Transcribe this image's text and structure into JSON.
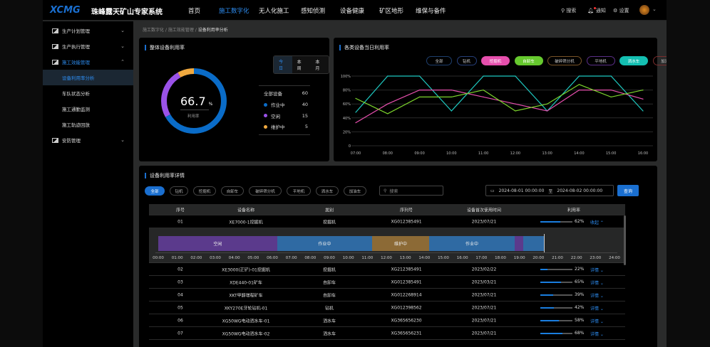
{
  "header": {
    "logo": "XCMG",
    "system_name": "珠峰露天矿山专家系统",
    "nav": [
      {
        "label": "首页",
        "active": false
      },
      {
        "label": "施工数字化",
        "active": true
      },
      {
        "label": "无人化施工",
        "active": false
      },
      {
        "label": "感知侦测",
        "active": false
      },
      {
        "label": "设备健康",
        "active": false
      },
      {
        "label": "矿区地形",
        "active": false
      },
      {
        "label": "维保与备件",
        "active": false
      }
    ],
    "tools": {
      "search": "搜索",
      "notify": "通知",
      "settings": "设置"
    }
  },
  "sidebar": {
    "items": [
      {
        "label": "生产计划管理",
        "type": "parent",
        "chevron": "⌄"
      },
      {
        "label": "生产执行管理",
        "type": "parent",
        "chevron": "⌄"
      },
      {
        "label": "施工效能管理",
        "type": "parent",
        "chevron": "⌃",
        "open": true
      },
      {
        "label": "设备利用率分析",
        "type": "sub",
        "active": true
      },
      {
        "label": "车队状态分析",
        "type": "sub"
      },
      {
        "label": "施工通勤监测",
        "type": "sub"
      },
      {
        "label": "施工轨迹回放",
        "type": "sub"
      },
      {
        "label": "安防管理",
        "type": "parent",
        "chevron": "⌄"
      }
    ]
  },
  "breadcrumb": [
    "施工数字化",
    "施工效能管理",
    "设备利用率分析"
  ],
  "overall": {
    "title": "整体设备利用率",
    "periods": [
      "今日",
      "本周",
      "本月"
    ],
    "active_period": "今日",
    "rate": "66.7",
    "unit": "%",
    "rate_label": "利用率",
    "total_label": "全部设备",
    "total": "60",
    "legend": [
      {
        "label": "作业中",
        "value": "40",
        "color": "#0a6cc8"
      },
      {
        "label": "空闲",
        "value": "15",
        "color": "#9a52e8"
      },
      {
        "label": "维护中",
        "value": "5",
        "color": "#f0a940"
      }
    ]
  },
  "daily": {
    "title": "各类设备当日利用率",
    "chips": [
      {
        "label": "全部",
        "color": "#1e3f6e",
        "filled": false
      },
      {
        "label": "钻机",
        "color": "#263f7a",
        "filled": false
      },
      {
        "label": "挖掘机",
        "color": "#e64fad",
        "filled": true
      },
      {
        "label": "自卸车",
        "color": "#66c92e",
        "filled": true
      },
      {
        "label": "破碎筛分机",
        "color": "#7a5428",
        "filled": false
      },
      {
        "label": "平地机",
        "color": "#5b2f88",
        "filled": false
      },
      {
        "label": "洒水车",
        "color": "#14bfb2",
        "filled": true
      },
      {
        "label": "加油车",
        "color": "#7a2e2e",
        "filled": false
      }
    ]
  },
  "chart_data": {
    "type": "line",
    "x": [
      "07:00",
      "08:00",
      "09:00",
      "10:00",
      "11:00",
      "12:00",
      "13:00",
      "14:00",
      "15:00",
      "16:00"
    ],
    "yticks": [
      "0",
      "20%",
      "40%",
      "60%",
      "80%",
      "100%"
    ],
    "ylim": [
      0,
      100
    ],
    "grid": true,
    "series": [
      {
        "name": "洒水车",
        "color": "#1ec8c0",
        "values": [
          48,
          100,
          100,
          50,
          100,
          100,
          50,
          100,
          100,
          50
        ]
      },
      {
        "name": "挖掘机",
        "color": "#e64fad",
        "values": [
          33,
          60,
          80,
          80,
          70,
          60,
          50,
          80,
          80,
          67
        ]
      },
      {
        "name": "自卸车",
        "color": "#7cd42c",
        "values": [
          68,
          46,
          70,
          70,
          80,
          50,
          60,
          88,
          70,
          80
        ]
      }
    ]
  },
  "detail": {
    "title": "设备利用率详情",
    "filters": [
      "全部",
      "钻机",
      "挖掘机",
      "自卸车",
      "破碎筛分机",
      "平地机",
      "洒水车",
      "加油车"
    ],
    "active_filter": "全部",
    "search_placeholder": "搜索",
    "date_from": "2024-08-01 00:00:00",
    "date_sep": "至",
    "date_to": "2024-08-02 00:00:00",
    "query": "查询",
    "columns": [
      "序号",
      "设备名称",
      "类别",
      "序列号",
      "设备首次使用时间",
      "利用率"
    ],
    "rows": [
      {
        "no": "01",
        "name": "XE7000-1挖掘机",
        "type": "挖掘机",
        "serial": "XG012385491",
        "first_use": "2023/07/21",
        "rate": 62,
        "rate_text": "62%",
        "action": "收起 ⌃"
      },
      {
        "no": "02",
        "name": "XE3000(正铲)-01挖掘机",
        "type": "挖掘机",
        "serial": "XG212385491",
        "first_use": "2023/02/22",
        "rate": 22,
        "rate_text": "22%",
        "action": "详情 ⌄"
      },
      {
        "no": "03",
        "name": "XDE440-01矿车",
        "type": "自卸车",
        "serial": "XG012385491",
        "first_use": "2023/03/21",
        "rate": 65,
        "rate_text": "65%",
        "action": "详情 ⌄"
      },
      {
        "no": "04",
        "name": "XKT甲醇增程矿车",
        "type": "自卸车",
        "serial": "XG012268914",
        "first_use": "2023/07/21",
        "rate": 39,
        "rate_text": "39%",
        "action": "详情 ⌄"
      },
      {
        "no": "05",
        "name": "XKY270E牙轮钻机-01",
        "type": "钻机",
        "serial": "XG012398562",
        "first_use": "2023/07/21",
        "rate": 42,
        "rate_text": "42%",
        "action": "详情 ⌄"
      },
      {
        "no": "06",
        "name": "XG50WG电动洒水车-01",
        "type": "洒水车",
        "serial": "XG365656230",
        "first_use": "2023/07/21",
        "rate": 58,
        "rate_text": "58%",
        "action": "详情 ⌄"
      },
      {
        "no": "07",
        "name": "XG50WG电动洒水车-02",
        "type": "洒水车",
        "serial": "XG365656231",
        "first_use": "2023/07/21",
        "rate": 68,
        "rate_text": "68%",
        "action": "详情 ⌄"
      }
    ],
    "timeline": {
      "ticks": [
        "00:00",
        "01:00",
        "02:00",
        "03:00",
        "04:00",
        "05:00",
        "06:00",
        "07:00",
        "08:00",
        "09:00",
        "10:00",
        "11:00",
        "12:00",
        "13:00",
        "14:00",
        "15:00",
        "16:00",
        "17:00",
        "18:00",
        "19:00",
        "20:00",
        "21:00",
        "22:00",
        "23:00",
        "24:00"
      ],
      "segments": [
        {
          "label": "空闲",
          "start": 0,
          "end": 6.25,
          "color": "#5b3a8c"
        },
        {
          "label": "作业中",
          "start": 6.25,
          "end": 11.25,
          "color": "#2f6aa3"
        },
        {
          "label": "维护中",
          "start": 11.25,
          "end": 14.25,
          "color": "#8c6a36"
        },
        {
          "label": "作业中",
          "start": 14.25,
          "end": 18.75,
          "color": "#2f6aa3"
        },
        {
          "label": "",
          "start": 18.75,
          "end": 19.2,
          "color": "#5b3a8c"
        },
        {
          "label": "",
          "start": 19.2,
          "end": 20.3,
          "color": "#2f6aa3"
        }
      ],
      "current": 20.3
    }
  }
}
